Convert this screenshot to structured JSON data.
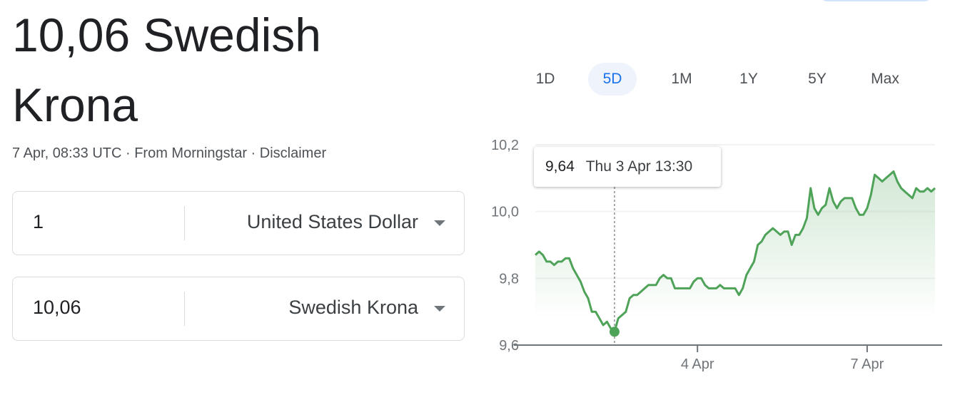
{
  "result": {
    "title": "10,06 Swedish Krona",
    "meta": "7 Apr, 08:33 UTC · From Morningstar · Disclaimer"
  },
  "converter": [
    {
      "value": "1",
      "currency": "United States Dollar"
    },
    {
      "value": "10,06",
      "currency": "Swedish Krona"
    }
  ],
  "tabs": [
    {
      "label": "1D"
    },
    {
      "label": "5D",
      "selected": true
    },
    {
      "label": "1M"
    },
    {
      "label": "1Y"
    },
    {
      "label": "5Y"
    },
    {
      "label": "Max"
    }
  ],
  "accent": "#1a73e8",
  "line_color": "#4ea359",
  "chart_data": {
    "type": "area",
    "ylim": [
      9.6,
      10.2
    ],
    "yticks": [
      "10,2",
      "10,0",
      "9,8",
      "9,6"
    ],
    "ytick_values": [
      10.2,
      10.0,
      9.8,
      9.6
    ],
    "xticks": [
      {
        "label": "4 Apr",
        "index": 43
      },
      {
        "label": "7 Apr",
        "index": 88
      }
    ],
    "values": [
      9.87,
      9.88,
      9.87,
      9.85,
      9.85,
      9.84,
      9.85,
      9.85,
      9.86,
      9.86,
      9.83,
      9.81,
      9.79,
      9.76,
      9.74,
      9.7,
      9.7,
      9.68,
      9.66,
      9.67,
      9.65,
      9.64,
      9.68,
      9.69,
      9.7,
      9.74,
      9.75,
      9.75,
      9.76,
      9.77,
      9.78,
      9.78,
      9.78,
      9.8,
      9.81,
      9.8,
      9.8,
      9.77,
      9.77,
      9.77,
      9.77,
      9.77,
      9.79,
      9.8,
      9.8,
      9.78,
      9.77,
      9.77,
      9.77,
      9.78,
      9.77,
      9.77,
      9.77,
      9.77,
      9.75,
      9.77,
      9.81,
      9.83,
      9.85,
      9.9,
      9.91,
      9.93,
      9.94,
      9.95,
      9.94,
      9.93,
      9.94,
      9.94,
      9.9,
      9.93,
      9.93,
      9.95,
      9.98,
      10.07,
      10.01,
      9.99,
      10.01,
      10.02,
      10.07,
      10.03,
      10.01,
      10.03,
      10.04,
      10.04,
      10.04,
      10.01,
      9.99,
      9.99,
      10.01,
      10.05,
      10.11,
      10.1,
      10.09,
      10.1,
      10.11,
      10.12,
      10.09,
      10.07,
      10.06,
      10.05,
      10.04,
      10.07,
      10.06,
      10.06,
      10.07,
      10.06,
      10.07
    ],
    "tooltip": {
      "index": 21,
      "value": "9,64",
      "time": "Thu 3 Apr 13:30"
    }
  }
}
